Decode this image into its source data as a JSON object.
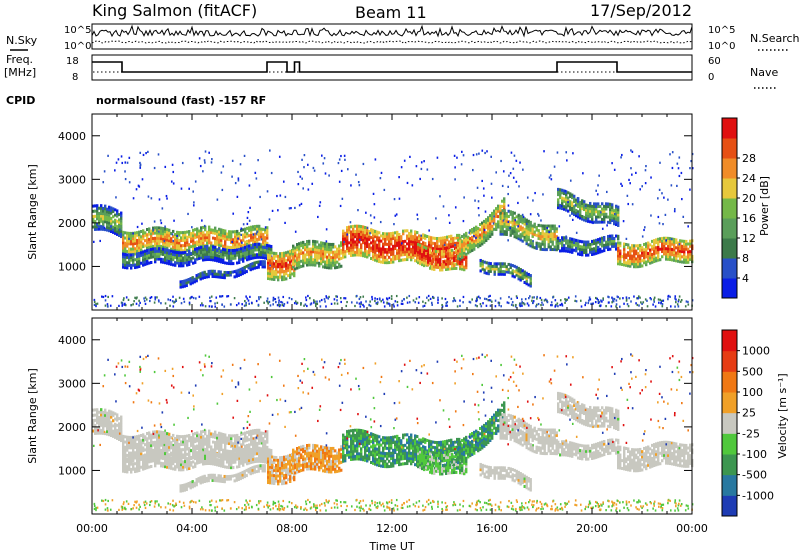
{
  "header": {
    "station": "King Salmon (fitACF)",
    "beam": "Beam 11",
    "date": "17/Sep/2012"
  },
  "strip_labels": {
    "nsky": "N.Sky",
    "nsearch": "N.Search",
    "freq_line1": "Freq.",
    "freq_line2": "[MHz]",
    "nave": "Nave",
    "cpid": "CPID",
    "cpid_text": "normalsound (fast) -157 RF",
    "noise_ticks_left": [
      "10^5",
      "10^0"
    ],
    "noise_ticks_right": [
      "10^5",
      "10^0"
    ],
    "freq_ticks": [
      "18",
      "8"
    ],
    "nave_ticks": [
      "60",
      "0"
    ]
  },
  "chart_data": [
    {
      "type": "heatmap",
      "name": "power",
      "ylabel": "Slant Range [km]",
      "xlabel": "",
      "x_range_hours": [
        0,
        24
      ],
      "ylim": [
        0,
        4500
      ],
      "yticks": [
        "1000",
        "2000",
        "3000",
        "4000"
      ],
      "colorbar": {
        "label": "Power [dB]",
        "ticks": [
          "4",
          "8",
          "12",
          "16",
          "20",
          "24",
          "28"
        ],
        "colors": [
          "#0a1ee6",
          "#2850c8",
          "#3c7a4a",
          "#5a9e5a",
          "#74b848",
          "#e6c83c",
          "#f08c28",
          "#e65014",
          "#e01010"
        ]
      }
    },
    {
      "type": "heatmap",
      "name": "velocity",
      "ylabel": "Slant Range [km]",
      "xlabel": "Time UT",
      "x_range_hours": [
        0,
        24
      ],
      "ylim": [
        0,
        4500
      ],
      "yticks": [
        "1000",
        "2000",
        "3000",
        "4000"
      ],
      "xticks": [
        "00:00",
        "04:00",
        "08:00",
        "12:00",
        "16:00",
        "20:00",
        "00:00"
      ],
      "colorbar": {
        "label": "Velocity [m s⁻¹]",
        "ticks": [
          "1000",
          "500",
          "100",
          "25",
          "-25",
          "-100",
          "-500",
          "-1000"
        ],
        "colors": [
          "#1e3cb4",
          "#2878a0",
          "#3c9650",
          "#50c83c",
          "#c8c8c0",
          "#f0a028",
          "#f07814",
          "#e63c14",
          "#e01010"
        ]
      }
    }
  ]
}
